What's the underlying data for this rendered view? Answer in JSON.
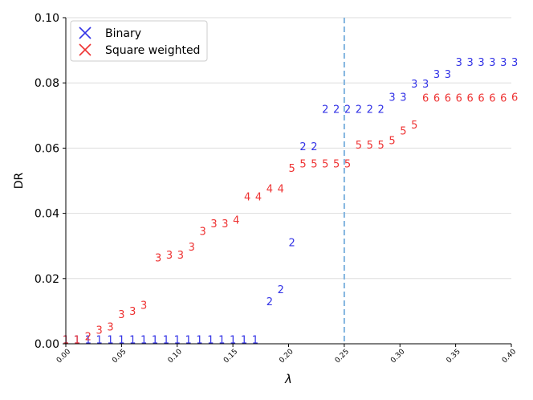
{
  "chart_data": {
    "type": "scatter",
    "xlabel": "λ",
    "ylabel": "DR",
    "xlim": [
      0.0,
      0.4
    ],
    "ylim": [
      0.0,
      0.1
    ],
    "xticks": [
      "0.00",
      "0.05",
      "0.10",
      "0.15",
      "0.20",
      "0.25",
      "0.30",
      "0.35",
      "0.40"
    ],
    "yticks": [
      "0.00",
      "0.02",
      "0.04",
      "0.06",
      "0.08",
      "0.10"
    ],
    "grid": "horizontal",
    "legend_placement": "upper-left",
    "vline": {
      "x": 0.25,
      "color": "#7fb2de",
      "style": "dashed"
    },
    "series": [
      {
        "name": "Binary",
        "color": "#3333e6",
        "points": [
          {
            "x": 0.0,
            "y": 0.0014,
            "label": "1"
          },
          {
            "x": 0.01,
            "y": 0.0014,
            "label": "1"
          },
          {
            "x": 0.02,
            "y": 0.0014,
            "label": "1"
          },
          {
            "x": 0.03,
            "y": 0.0014,
            "label": "1"
          },
          {
            "x": 0.04,
            "y": 0.0014,
            "label": "1"
          },
          {
            "x": 0.05,
            "y": 0.0014,
            "label": "1"
          },
          {
            "x": 0.06,
            "y": 0.0014,
            "label": "1"
          },
          {
            "x": 0.07,
            "y": 0.0014,
            "label": "1"
          },
          {
            "x": 0.08,
            "y": 0.0014,
            "label": "1"
          },
          {
            "x": 0.09,
            "y": 0.0014,
            "label": "1"
          },
          {
            "x": 0.1,
            "y": 0.0014,
            "label": "1"
          },
          {
            "x": 0.11,
            "y": 0.0014,
            "label": "1"
          },
          {
            "x": 0.12,
            "y": 0.0014,
            "label": "1"
          },
          {
            "x": 0.13,
            "y": 0.0014,
            "label": "1"
          },
          {
            "x": 0.14,
            "y": 0.0014,
            "label": "1"
          },
          {
            "x": 0.15,
            "y": 0.0014,
            "label": "1"
          },
          {
            "x": 0.16,
            "y": 0.0014,
            "label": "1"
          },
          {
            "x": 0.17,
            "y": 0.0014,
            "label": "1"
          },
          {
            "x": 0.183,
            "y": 0.013,
            "label": "2"
          },
          {
            "x": 0.193,
            "y": 0.0168,
            "label": "2"
          },
          {
            "x": 0.203,
            "y": 0.0312,
            "label": "2"
          },
          {
            "x": 0.213,
            "y": 0.0606,
            "label": "2"
          },
          {
            "x": 0.223,
            "y": 0.0606,
            "label": "2"
          },
          {
            "x": 0.233,
            "y": 0.072,
            "label": "2"
          },
          {
            "x": 0.243,
            "y": 0.072,
            "label": "2"
          },
          {
            "x": 0.253,
            "y": 0.072,
            "label": "2"
          },
          {
            "x": 0.263,
            "y": 0.072,
            "label": "2"
          },
          {
            "x": 0.273,
            "y": 0.072,
            "label": "2"
          },
          {
            "x": 0.283,
            "y": 0.072,
            "label": "2"
          },
          {
            "x": 0.293,
            "y": 0.0757,
            "label": "3"
          },
          {
            "x": 0.303,
            "y": 0.0757,
            "label": "3"
          },
          {
            "x": 0.313,
            "y": 0.0798,
            "label": "3"
          },
          {
            "x": 0.323,
            "y": 0.0798,
            "label": "3"
          },
          {
            "x": 0.333,
            "y": 0.0827,
            "label": "3"
          },
          {
            "x": 0.343,
            "y": 0.0827,
            "label": "3"
          },
          {
            "x": 0.353,
            "y": 0.0865,
            "label": "3"
          },
          {
            "x": 0.363,
            "y": 0.0865,
            "label": "3"
          },
          {
            "x": 0.373,
            "y": 0.0865,
            "label": "3"
          },
          {
            "x": 0.383,
            "y": 0.0865,
            "label": "3"
          },
          {
            "x": 0.393,
            "y": 0.0865,
            "label": "3"
          },
          {
            "x": 0.403,
            "y": 0.0865,
            "label": "3"
          }
        ]
      },
      {
        "name": "Square weighted",
        "color": "#ee3333",
        "points": [
          {
            "x": 0.0,
            "y": 0.0014,
            "label": "1"
          },
          {
            "x": 0.01,
            "y": 0.0014,
            "label": "1"
          },
          {
            "x": 0.02,
            "y": 0.0024,
            "label": "2"
          },
          {
            "x": 0.03,
            "y": 0.0043,
            "label": "3"
          },
          {
            "x": 0.04,
            "y": 0.0053,
            "label": "3"
          },
          {
            "x": 0.05,
            "y": 0.0091,
            "label": "3"
          },
          {
            "x": 0.06,
            "y": 0.0101,
            "label": "3"
          },
          {
            "x": 0.07,
            "y": 0.012,
            "label": "3"
          },
          {
            "x": 0.083,
            "y": 0.0265,
            "label": "3"
          },
          {
            "x": 0.093,
            "y": 0.0274,
            "label": "3"
          },
          {
            "x": 0.103,
            "y": 0.0274,
            "label": "3"
          },
          {
            "x": 0.113,
            "y": 0.0298,
            "label": "3"
          },
          {
            "x": 0.123,
            "y": 0.0346,
            "label": "3"
          },
          {
            "x": 0.133,
            "y": 0.037,
            "label": "3"
          },
          {
            "x": 0.143,
            "y": 0.037,
            "label": "3"
          },
          {
            "x": 0.153,
            "y": 0.038,
            "label": "4"
          },
          {
            "x": 0.163,
            "y": 0.0452,
            "label": "4"
          },
          {
            "x": 0.173,
            "y": 0.0452,
            "label": "4"
          },
          {
            "x": 0.183,
            "y": 0.0476,
            "label": "4"
          },
          {
            "x": 0.193,
            "y": 0.0476,
            "label": "4"
          },
          {
            "x": 0.203,
            "y": 0.0539,
            "label": "5"
          },
          {
            "x": 0.213,
            "y": 0.0553,
            "label": "5"
          },
          {
            "x": 0.223,
            "y": 0.0553,
            "label": "5"
          },
          {
            "x": 0.233,
            "y": 0.0553,
            "label": "5"
          },
          {
            "x": 0.243,
            "y": 0.0553,
            "label": "5"
          },
          {
            "x": 0.253,
            "y": 0.0553,
            "label": "5"
          },
          {
            "x": 0.263,
            "y": 0.0611,
            "label": "5"
          },
          {
            "x": 0.273,
            "y": 0.0611,
            "label": "5"
          },
          {
            "x": 0.283,
            "y": 0.0611,
            "label": "5"
          },
          {
            "x": 0.293,
            "y": 0.0625,
            "label": "5"
          },
          {
            "x": 0.303,
            "y": 0.0654,
            "label": "5"
          },
          {
            "x": 0.313,
            "y": 0.0673,
            "label": "5"
          },
          {
            "x": 0.323,
            "y": 0.0755,
            "label": "6"
          },
          {
            "x": 0.333,
            "y": 0.0755,
            "label": "6"
          },
          {
            "x": 0.343,
            "y": 0.0755,
            "label": "6"
          },
          {
            "x": 0.353,
            "y": 0.0755,
            "label": "6"
          },
          {
            "x": 0.363,
            "y": 0.0755,
            "label": "6"
          },
          {
            "x": 0.373,
            "y": 0.0755,
            "label": "6"
          },
          {
            "x": 0.383,
            "y": 0.0755,
            "label": "6"
          },
          {
            "x": 0.393,
            "y": 0.0755,
            "label": "6"
          },
          {
            "x": 0.403,
            "y": 0.0757,
            "label": "6"
          }
        ]
      }
    ]
  }
}
